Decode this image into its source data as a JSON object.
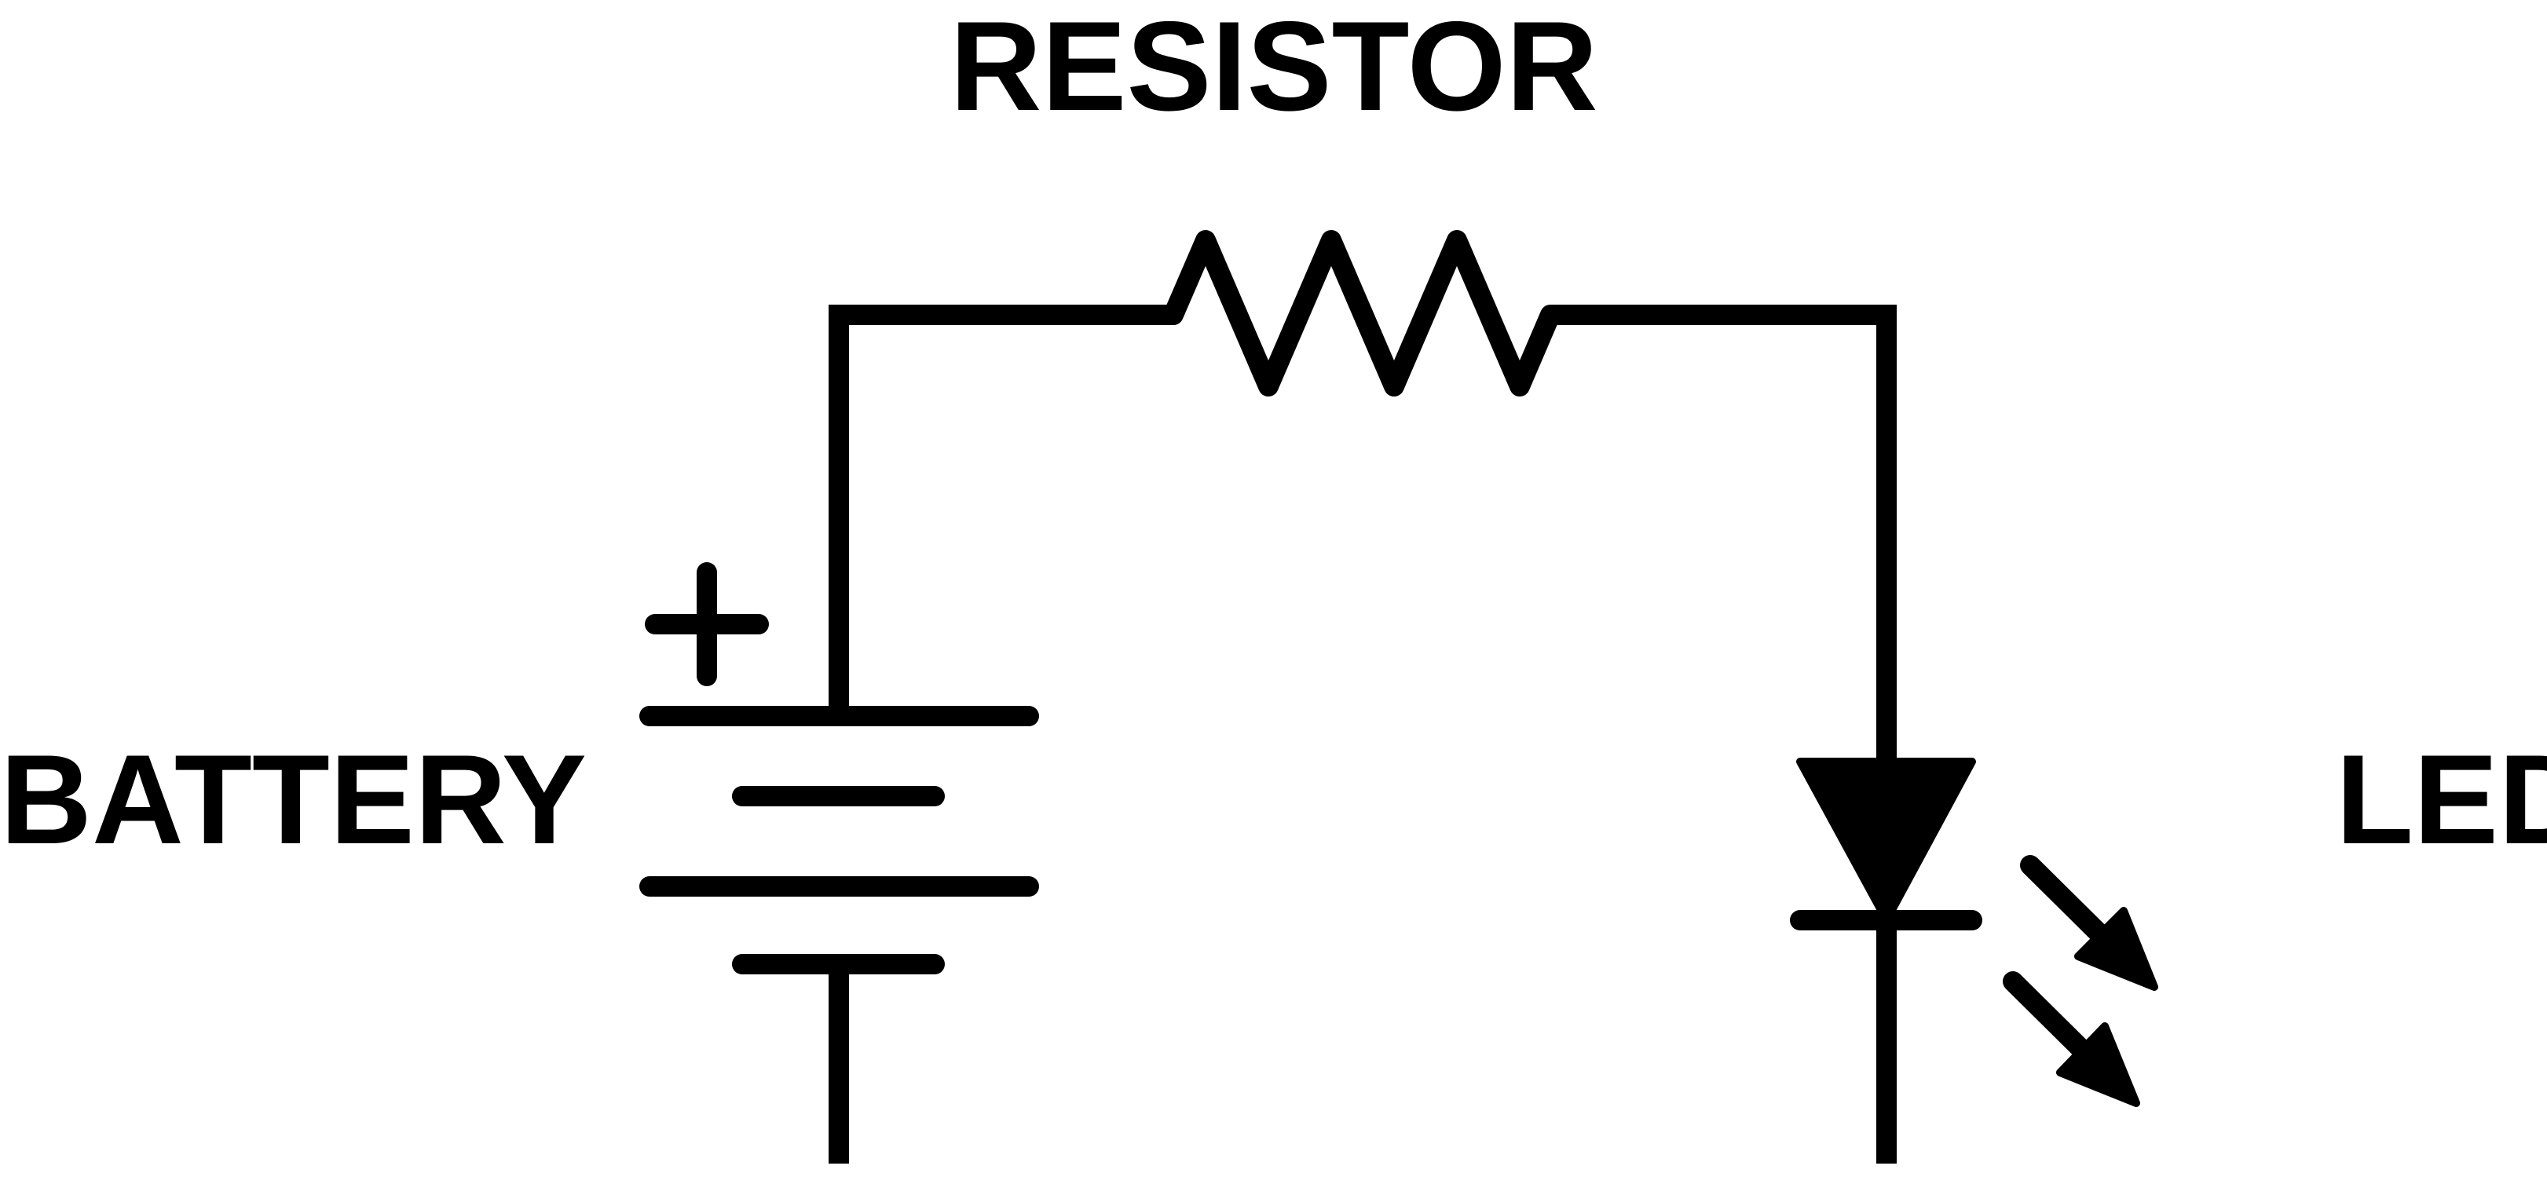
{
  "labels": {
    "resistor": "RESISTOR",
    "battery": "BATTERY",
    "led": "LED"
  },
  "symbols": {
    "battery_polarity": "+"
  },
  "colors": {
    "stroke": "#000000",
    "background": "#ffffff"
  }
}
